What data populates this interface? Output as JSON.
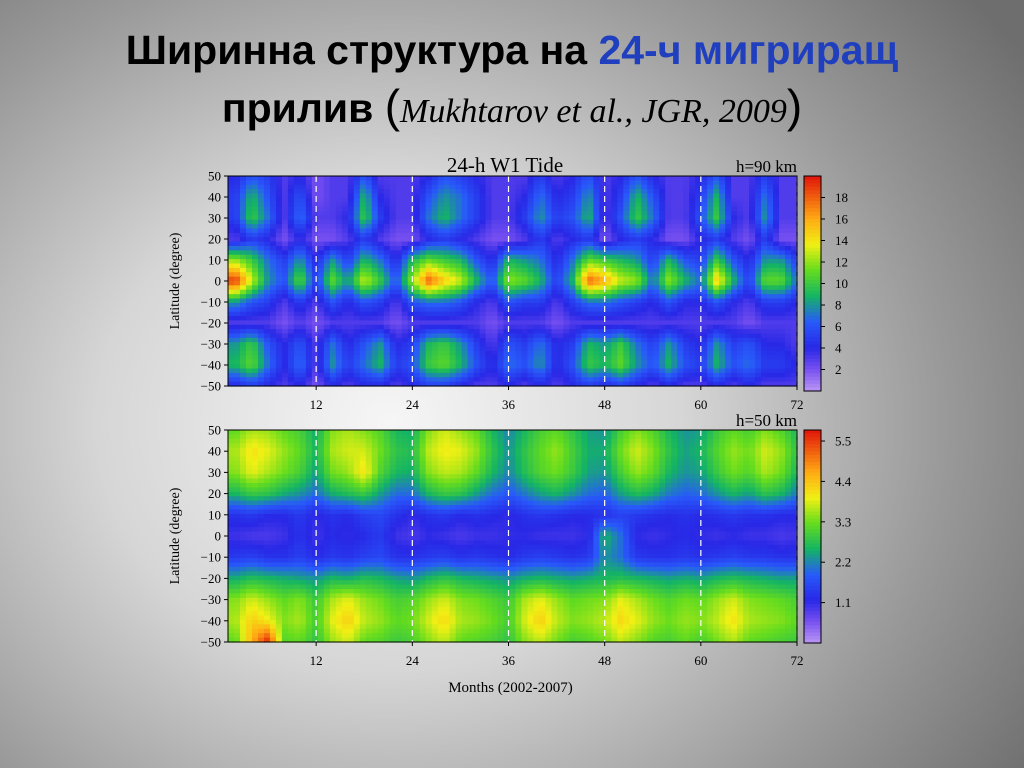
{
  "slide": {
    "title_line1_prefix": "Ширинна структура на ",
    "title_line1_highlight": "24-ч мигриращ",
    "title_line2_word": "прилив ",
    "title_line2_open": "(",
    "title_line2_citation": "Mukhtarov et al., JGR, 2009",
    "title_line2_close": ")",
    "highlight_color": "#1f3fbf"
  },
  "chart_data": [
    {
      "type": "heatmap",
      "title": "24-h W1 Tide",
      "subtitle": "h=90 km",
      "xlabel": "",
      "ylabel": "Latitude (degree)",
      "x_ticks": [
        12,
        24,
        36,
        48,
        60,
        72
      ],
      "y_ticks": [
        50,
        40,
        30,
        20,
        10,
        0,
        -10,
        -20,
        -30,
        -40,
        -50
      ],
      "xlim": [
        1,
        72
      ],
      "ylim": [
        -50,
        50
      ],
      "vertical_dashed_lines": [
        12,
        24,
        36,
        48,
        60,
        72
      ],
      "colorbar": {
        "min": 0,
        "max": 20,
        "ticks": [
          2,
          4,
          6,
          8,
          10,
          12,
          14,
          16,
          18
        ]
      },
      "x": [
        2,
        4,
        6,
        8,
        10,
        12,
        14,
        16,
        18,
        20,
        22,
        24,
        26,
        28,
        30,
        32,
        34,
        36,
        38,
        40,
        42,
        44,
        46,
        48,
        50,
        52,
        54,
        56,
        58,
        60,
        62,
        64,
        66,
        68,
        70,
        72
      ],
      "y": [
        50,
        40,
        30,
        20,
        10,
        0,
        -10,
        -20,
        -30,
        -40,
        -50
      ],
      "values": [
        [
          4,
          6,
          5,
          3,
          4,
          2,
          3,
          3,
          6,
          3,
          3,
          3,
          4,
          6,
          5,
          4,
          3,
          3,
          3,
          5,
          3,
          4,
          6,
          3,
          4,
          6,
          4,
          3,
          3,
          4,
          6,
          3,
          3,
          5,
          3,
          3
        ],
        [
          5,
          9,
          6,
          3,
          6,
          2,
          3,
          3,
          9,
          4,
          3,
          3,
          6,
          8,
          7,
          5,
          3,
          3,
          4,
          7,
          4,
          5,
          8,
          3,
          5,
          9,
          6,
          3,
          3,
          5,
          9,
          3,
          3,
          7,
          3,
          3
        ],
        [
          5,
          10,
          7,
          3,
          7,
          3,
          3,
          4,
          10,
          5,
          3,
          3,
          7,
          9,
          7,
          5,
          3,
          3,
          5,
          8,
          5,
          6,
          9,
          3,
          6,
          10,
          7,
          3,
          3,
          6,
          10,
          4,
          3,
          8,
          3,
          3
        ],
        [
          3,
          5,
          4,
          2,
          4,
          2,
          2,
          3,
          5,
          3,
          2,
          2,
          4,
          5,
          4,
          3,
          2,
          2,
          3,
          5,
          3,
          4,
          5,
          2,
          4,
          5,
          4,
          2,
          2,
          4,
          5,
          3,
          2,
          5,
          2,
          2
        ],
        [
          12,
          10,
          7,
          5,
          8,
          4,
          8,
          5,
          9,
          7,
          4,
          9,
          11,
          10,
          9,
          6,
          4,
          9,
          8,
          7,
          4,
          7,
          11,
          10,
          9,
          8,
          5,
          9,
          6,
          5,
          10,
          6,
          4,
          8,
          8,
          5
        ],
        [
          19,
          13,
          8,
          6,
          11,
          5,
          11,
          8,
          13,
          10,
          6,
          12,
          18,
          15,
          13,
          9,
          6,
          12,
          11,
          9,
          5,
          9,
          18,
          16,
          13,
          12,
          7,
          12,
          9,
          7,
          15,
          9,
          5,
          11,
          11,
          7
        ],
        [
          8,
          6,
          5,
          3,
          5,
          3,
          6,
          4,
          6,
          5,
          3,
          6,
          7,
          7,
          6,
          4,
          3,
          6,
          5,
          5,
          3,
          5,
          7,
          7,
          6,
          5,
          4,
          6,
          4,
          4,
          6,
          4,
          3,
          5,
          5,
          4
        ],
        [
          3,
          3,
          3,
          2,
          3,
          2,
          3,
          3,
          3,
          3,
          2,
          3,
          3,
          3,
          3,
          3,
          2,
          3,
          3,
          3,
          2,
          3,
          3,
          3,
          3,
          3,
          3,
          3,
          3,
          3,
          3,
          3,
          2,
          3,
          3,
          3
        ],
        [
          8,
          10,
          6,
          4,
          6,
          3,
          7,
          4,
          6,
          8,
          4,
          5,
          9,
          10,
          8,
          5,
          3,
          6,
          5,
          7,
          4,
          5,
          9,
          8,
          10,
          7,
          5,
          8,
          5,
          4,
          8,
          5,
          6,
          4,
          4,
          3
        ],
        [
          9,
          11,
          7,
          4,
          7,
          3,
          8,
          5,
          7,
          9,
          5,
          6,
          10,
          11,
          9,
          6,
          4,
          7,
          6,
          8,
          4,
          6,
          10,
          9,
          11,
          8,
          6,
          9,
          6,
          5,
          9,
          6,
          7,
          5,
          5,
          4
        ],
        [
          4,
          5,
          4,
          3,
          4,
          2,
          4,
          3,
          4,
          4,
          3,
          4,
          5,
          5,
          4,
          3,
          3,
          4,
          3,
          4,
          3,
          4,
          5,
          4,
          5,
          4,
          3,
          4,
          3,
          3,
          4,
          3,
          4,
          3,
          3,
          3
        ]
      ]
    },
    {
      "type": "heatmap",
      "title": "",
      "subtitle": "h=50 km",
      "xlabel": "Months  (2002-2007)",
      "ylabel": "Latitude  (degree)",
      "x_ticks": [
        12,
        24,
        36,
        48,
        60,
        72
      ],
      "y_ticks": [
        50,
        40,
        30,
        20,
        10,
        0,
        -10,
        -20,
        -30,
        -40,
        -50
      ],
      "xlim": [
        1,
        72
      ],
      "ylim": [
        -50,
        50
      ],
      "vertical_dashed_lines": [
        12,
        24,
        36,
        48,
        60,
        72
      ],
      "colorbar": {
        "min": 0,
        "max": 5.8,
        "ticks": [
          1.1,
          2.2,
          3.3,
          4.4,
          5.5
        ]
      },
      "x": [
        2,
        4,
        6,
        8,
        10,
        12,
        14,
        16,
        18,
        20,
        22,
        24,
        26,
        28,
        30,
        32,
        34,
        36,
        38,
        40,
        42,
        44,
        46,
        48,
        50,
        52,
        54,
        56,
        58,
        60,
        62,
        64,
        66,
        68,
        70,
        72
      ],
      "y": [
        50,
        40,
        30,
        20,
        10,
        0,
        -10,
        -20,
        -30,
        -40,
        -50
      ],
      "values": [
        [
          3.2,
          3.6,
          3.5,
          3.2,
          3.0,
          2.5,
          3.4,
          3.6,
          3.4,
          3.1,
          2.6,
          2.5,
          3.4,
          3.8,
          3.5,
          3.2,
          2.6,
          2.2,
          2.6,
          3.0,
          3.2,
          2.8,
          2.4,
          2.3,
          3.0,
          3.4,
          3.1,
          2.6,
          2.3,
          2.4,
          2.9,
          3.2,
          3.0,
          3.4,
          3.1,
          2.6
        ],
        [
          3.6,
          4.1,
          3.9,
          3.5,
          3.2,
          2.6,
          3.6,
          3.8,
          3.8,
          3.3,
          2.8,
          2.7,
          3.7,
          4.0,
          3.9,
          3.5,
          2.8,
          2.3,
          2.8,
          3.2,
          3.5,
          3.0,
          2.5,
          2.5,
          3.3,
          3.8,
          3.4,
          2.8,
          2.4,
          2.6,
          3.1,
          3.5,
          3.3,
          3.8,
          3.5,
          2.8
        ],
        [
          3.4,
          3.9,
          3.6,
          3.3,
          3.0,
          2.4,
          3.3,
          3.5,
          4.1,
          3.1,
          2.6,
          2.5,
          3.4,
          3.7,
          3.6,
          3.2,
          2.6,
          2.2,
          2.7,
          3.1,
          3.3,
          2.9,
          2.4,
          2.3,
          3.0,
          3.5,
          3.2,
          2.6,
          2.3,
          2.4,
          2.9,
          3.3,
          3.1,
          3.6,
          3.3,
          2.6
        ],
        [
          2.6,
          2.9,
          2.8,
          2.5,
          2.3,
          2.0,
          2.5,
          2.7,
          2.9,
          2.4,
          2.0,
          2.0,
          2.6,
          2.9,
          2.8,
          2.4,
          2.0,
          1.8,
          2.1,
          2.4,
          2.6,
          2.3,
          2.0,
          1.9,
          2.4,
          2.7,
          2.5,
          2.1,
          1.9,
          2.0,
          2.3,
          2.6,
          2.4,
          2.8,
          2.6,
          2.1
        ],
        [
          1.3,
          1.4,
          1.2,
          1.2,
          1.4,
          1.1,
          1.3,
          1.2,
          1.5,
          1.6,
          1.3,
          1.1,
          1.3,
          1.4,
          1.2,
          1.3,
          1.2,
          1.1,
          1.3,
          1.4,
          1.3,
          1.2,
          1.2,
          1.3,
          1.5,
          1.4,
          1.3,
          1.2,
          1.3,
          1.2,
          1.3,
          1.4,
          1.3,
          1.3,
          1.2,
          1.2
        ],
        [
          1.0,
          0.9,
          0.9,
          1.0,
          1.3,
          1.0,
          1.2,
          1.1,
          1.2,
          1.4,
          1.0,
          0.9,
          1.1,
          1.0,
          0.9,
          1.0,
          1.0,
          1.1,
          1.1,
          1.0,
          1.0,
          1.0,
          1.1,
          2.6,
          2.0,
          1.1,
          1.0,
          1.1,
          1.2,
          1.1,
          1.0,
          1.1,
          1.0,
          1.0,
          0.9,
          1.0
        ],
        [
          1.4,
          1.5,
          1.3,
          1.3,
          1.5,
          1.2,
          1.4,
          1.3,
          1.5,
          1.6,
          1.3,
          1.3,
          1.4,
          1.5,
          1.3,
          1.4,
          1.3,
          1.2,
          1.4,
          1.5,
          1.4,
          1.3,
          1.4,
          2.3,
          2.0,
          1.4,
          1.3,
          1.3,
          1.4,
          1.3,
          1.4,
          1.5,
          1.4,
          1.4,
          1.3,
          1.3
        ],
        [
          2.5,
          2.7,
          2.6,
          2.5,
          2.4,
          2.3,
          2.6,
          2.5,
          2.7,
          2.6,
          2.4,
          2.3,
          2.6,
          2.8,
          2.6,
          2.5,
          2.4,
          2.3,
          2.5,
          2.6,
          2.5,
          2.4,
          2.5,
          2.6,
          2.7,
          2.6,
          2.5,
          2.4,
          2.5,
          2.4,
          2.6,
          2.7,
          2.6,
          2.5,
          2.4,
          2.4
        ],
        [
          3.4,
          3.8,
          3.5,
          3.2,
          3.4,
          2.9,
          3.6,
          3.9,
          3.5,
          3.3,
          3.0,
          3.1,
          3.5,
          3.8,
          3.4,
          3.3,
          3.1,
          2.9,
          3.6,
          3.9,
          3.5,
          3.2,
          3.3,
          3.4,
          3.9,
          3.6,
          3.3,
          3.1,
          3.3,
          3.2,
          3.5,
          3.8,
          3.4,
          3.3,
          3.2,
          3.0
        ],
        [
          3.6,
          4.3,
          4.0,
          3.4,
          3.6,
          3.0,
          3.9,
          4.3,
          3.7,
          3.5,
          3.2,
          3.3,
          3.8,
          4.2,
          3.6,
          3.5,
          3.3,
          3.0,
          3.8,
          4.3,
          3.7,
          3.4,
          3.5,
          3.7,
          4.2,
          3.9,
          3.5,
          3.3,
          3.5,
          3.4,
          3.7,
          4.1,
          3.6,
          3.5,
          3.4,
          3.2
        ],
        [
          3.2,
          4.6,
          5.7,
          3.1,
          3.2,
          2.8,
          3.5,
          3.8,
          3.2,
          3.1,
          2.9,
          3.0,
          3.4,
          3.7,
          3.2,
          3.1,
          3.0,
          2.8,
          3.4,
          3.7,
          3.3,
          3.0,
          3.1,
          3.3,
          3.7,
          3.4,
          3.1,
          3.0,
          3.2,
          3.0,
          3.3,
          3.6,
          3.2,
          3.1,
          3.0,
          2.9
        ]
      ]
    }
  ]
}
